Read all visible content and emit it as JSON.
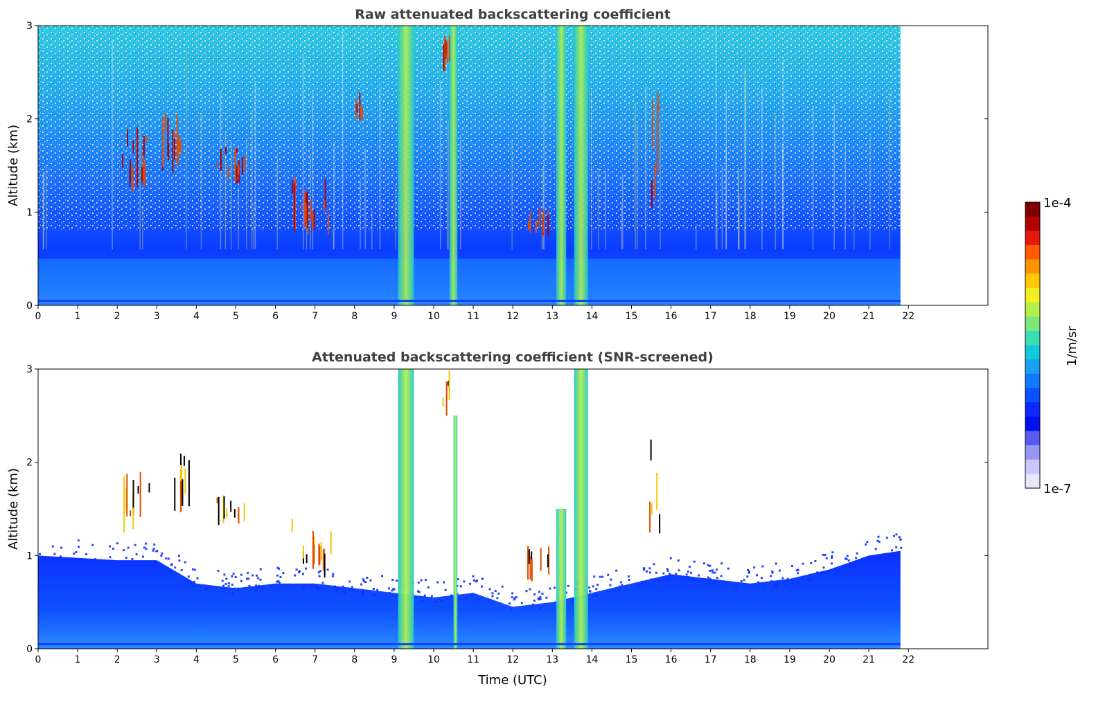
{
  "chart_data": [
    {
      "type": "heatmap",
      "title": "Raw attenuated backscattering coefficient",
      "ylabel": "Altitude (km)",
      "xlabel": "",
      "xlim": [
        0,
        24
      ],
      "ylim": [
        0,
        3
      ],
      "xticks": [
        0,
        1,
        2,
        3,
        4,
        5,
        6,
        7,
        8,
        9,
        10,
        11,
        12,
        13,
        14,
        15,
        16,
        17,
        18,
        19,
        20,
        21,
        22
      ],
      "yticks": [
        0,
        1,
        2,
        3
      ],
      "data_end_time": 21.8,
      "features": [
        {
          "kind": "boundary_layer",
          "x": [
            0,
            21.8
          ],
          "y": [
            0,
            0.5
          ]
        },
        {
          "kind": "precipitation_column",
          "x": [
            9.1,
            9.5
          ],
          "y": [
            0,
            3
          ]
        },
        {
          "kind": "precipitation_column",
          "x": [
            10.4,
            10.6
          ],
          "y": [
            0,
            3
          ]
        },
        {
          "kind": "precipitation_column",
          "x": [
            13.1,
            13.35
          ],
          "y": [
            0,
            3
          ]
        },
        {
          "kind": "precipitation_column",
          "x": [
            13.55,
            13.9
          ],
          "y": [
            0,
            3
          ]
        },
        {
          "kind": "cloud",
          "x": [
            2.1,
            2.8
          ],
          "y": [
            1.25,
            1.95
          ]
        },
        {
          "kind": "cloud",
          "x": [
            3.1,
            3.8
          ],
          "y": [
            1.45,
            2.1
          ]
        },
        {
          "kind": "cloud",
          "x": [
            4.5,
            5.2
          ],
          "y": [
            1.35,
            1.7
          ]
        },
        {
          "kind": "cloud",
          "x": [
            6.4,
            7.4
          ],
          "y": [
            0.8,
            1.4
          ]
        },
        {
          "kind": "cloud",
          "x": [
            12.3,
            12.9
          ],
          "y": [
            0.75,
            1.1
          ]
        },
        {
          "kind": "cloud",
          "x": [
            15.4,
            15.7
          ],
          "y": [
            0.9,
            2.3
          ]
        },
        {
          "kind": "cloud",
          "x": [
            10.2,
            10.4
          ],
          "y": [
            2.5,
            3
          ]
        },
        {
          "kind": "cloud",
          "x": [
            8.0,
            8.2
          ],
          "y": [
            2.0,
            2.4
          ]
        }
      ]
    },
    {
      "type": "heatmap",
      "title": "Attenuated backscattering coefficient (SNR-screened)",
      "ylabel": "Altitude (km)",
      "xlabel": "Time (UTC)",
      "xlim": [
        0,
        24
      ],
      "ylim": [
        0,
        3
      ],
      "xticks": [
        0,
        1,
        2,
        3,
        4,
        5,
        6,
        7,
        8,
        9,
        10,
        11,
        12,
        13,
        14,
        15,
        16,
        17,
        18,
        19,
        20,
        21,
        22
      ],
      "yticks": [
        0,
        1,
        2,
        3
      ],
      "data_end_time": 21.8,
      "boundary_layer_top_km": [
        [
          0,
          1.0
        ],
        [
          2,
          0.95
        ],
        [
          3,
          0.95
        ],
        [
          4,
          0.7
        ],
        [
          5,
          0.65
        ],
        [
          6,
          0.7
        ],
        [
          7,
          0.7
        ],
        [
          8,
          0.65
        ],
        [
          9,
          0.6
        ],
        [
          10,
          0.55
        ],
        [
          11,
          0.6
        ],
        [
          12,
          0.45
        ],
        [
          13,
          0.5
        ],
        [
          14,
          0.6
        ],
        [
          15,
          0.7
        ],
        [
          16,
          0.8
        ],
        [
          17,
          0.75
        ],
        [
          18,
          0.7
        ],
        [
          19,
          0.75
        ],
        [
          20,
          0.85
        ],
        [
          21,
          1.0
        ],
        [
          21.8,
          1.05
        ]
      ],
      "features": [
        {
          "kind": "precipitation_column",
          "x": [
            9.1,
            9.5
          ],
          "y": [
            0,
            3
          ]
        },
        {
          "kind": "precipitation_column",
          "x": [
            10.5,
            10.6
          ],
          "y": [
            0,
            2.5
          ]
        },
        {
          "kind": "precipitation_column",
          "x": [
            13.1,
            13.35
          ],
          "y": [
            0,
            1.5
          ]
        },
        {
          "kind": "precipitation_column",
          "x": [
            13.55,
            13.9
          ],
          "y": [
            0,
            3
          ]
        },
        {
          "kind": "cloud",
          "x": [
            2.1,
            2.8
          ],
          "y": [
            1.25,
            1.95
          ]
        },
        {
          "kind": "cloud",
          "x": [
            3.1,
            3.8
          ],
          "y": [
            1.45,
            2.1
          ]
        },
        {
          "kind": "cloud",
          "x": [
            4.5,
            5.2
          ],
          "y": [
            1.35,
            1.7
          ]
        },
        {
          "kind": "cloud",
          "x": [
            6.4,
            7.4
          ],
          "y": [
            0.8,
            1.4
          ]
        },
        {
          "kind": "cloud",
          "x": [
            12.3,
            12.9
          ],
          "y": [
            0.75,
            1.1
          ]
        },
        {
          "kind": "cloud",
          "x": [
            15.4,
            15.7
          ],
          "y": [
            0.9,
            2.3
          ]
        },
        {
          "kind": "cloud",
          "x": [
            10.2,
            10.4
          ],
          "y": [
            2.5,
            3
          ]
        }
      ]
    }
  ],
  "colorbar": {
    "label": "1/m/sr",
    "max_label": "1e-4",
    "min_label": "1e-7",
    "colors": [
      "#7f0000",
      "#b30000",
      "#e31a0a",
      "#ff5a00",
      "#ff9400",
      "#ffc800",
      "#f0f020",
      "#b4f04a",
      "#7de87a",
      "#3cdcb4",
      "#14c8dc",
      "#1aa0f0",
      "#1478ff",
      "#0a50ff",
      "#0a28ff",
      "#0010f0",
      "#5a5af0",
      "#9696f5",
      "#c8c8fa",
      "#e6e6fc"
    ]
  }
}
